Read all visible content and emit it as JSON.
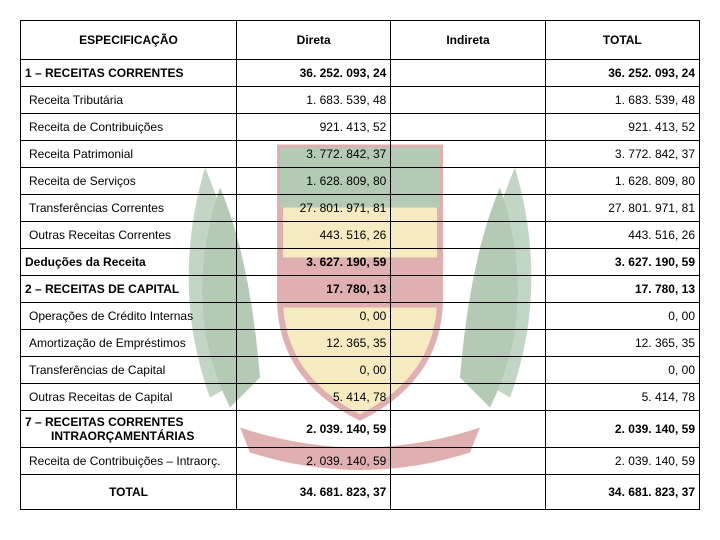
{
  "headers": {
    "spec": "ESPECIFICAÇÃO",
    "direta": "Direta",
    "indireta": "Indireta",
    "total": "TOTAL"
  },
  "rows": [
    {
      "label": "1 – RECEITAS CORRENTES",
      "direta": "36. 252. 093, 24",
      "indireta": "",
      "total": "36. 252. 093, 24",
      "bold": true
    },
    {
      "label": "Receita Tributária",
      "direta": "1. 683. 539, 48",
      "indireta": "",
      "total": "1. 683. 539, 48",
      "bold": false
    },
    {
      "label": "Receita de Contribuições",
      "direta": "921. 413, 52",
      "indireta": "",
      "total": "921. 413, 52",
      "bold": false
    },
    {
      "label": "Receita Patrimonial",
      "direta": "3. 772. 842, 37",
      "indireta": "",
      "total": "3. 772. 842, 37",
      "bold": false
    },
    {
      "label": "Receita de Serviços",
      "direta": "1. 628. 809, 80",
      "indireta": "",
      "total": "1. 628. 809, 80",
      "bold": false
    },
    {
      "label": "Transferências Correntes",
      "direta": "27. 801. 971, 81",
      "indireta": "",
      "total": "27. 801. 971, 81",
      "bold": false
    },
    {
      "label": "Outras Receitas Correntes",
      "direta": "443. 516, 26",
      "indireta": "",
      "total": "443. 516, 26",
      "bold": false
    },
    {
      "label": "Deduções da Receita",
      "direta": "3. 627. 190, 59",
      "indireta": "",
      "total": "3. 627. 190, 59",
      "bold": true,
      "leftpad": false
    },
    {
      "label": "2 – RECEITAS DE CAPITAL",
      "direta": "17. 780, 13",
      "indireta": "",
      "total": "17. 780, 13",
      "bold": true
    },
    {
      "label": "Operações de Crédito Internas",
      "direta": "0, 00",
      "indireta": "",
      "total": "0, 00",
      "bold": false
    },
    {
      "label": "Amortização de Empréstimos",
      "direta": "12. 365, 35",
      "indireta": "",
      "total": "12. 365, 35",
      "bold": false
    },
    {
      "label": "Transferências de Capital",
      "direta": "0, 00",
      "indireta": "",
      "total": "0, 00",
      "bold": false
    },
    {
      "label": "Outras Receitas de Capital",
      "direta": "5. 414, 78",
      "indireta": "",
      "total": "5. 414, 78",
      "bold": false
    },
    {
      "label": "7 – RECEITAS CORRENTES",
      "label2": "INTRAORÇAMENTÁRIAS",
      "direta": "2. 039. 140, 59",
      "indireta": "",
      "total": "2. 039. 140, 59",
      "bold": true,
      "twoLine": true
    },
    {
      "label": "Receita de Contribuições – Intraorç.",
      "direta": "2. 039. 140, 59",
      "indireta": "",
      "total": "2. 039. 140, 59",
      "bold": false
    }
  ],
  "totalRow": {
    "label": "TOTAL",
    "direta": "34. 681. 823, 37",
    "indireta": "",
    "total": "34. 681. 823, 37"
  },
  "watermark": {
    "green": "#2a6b2f",
    "red": "#a51e22",
    "yellow": "#e8c74d",
    "white": "#ffffff"
  }
}
